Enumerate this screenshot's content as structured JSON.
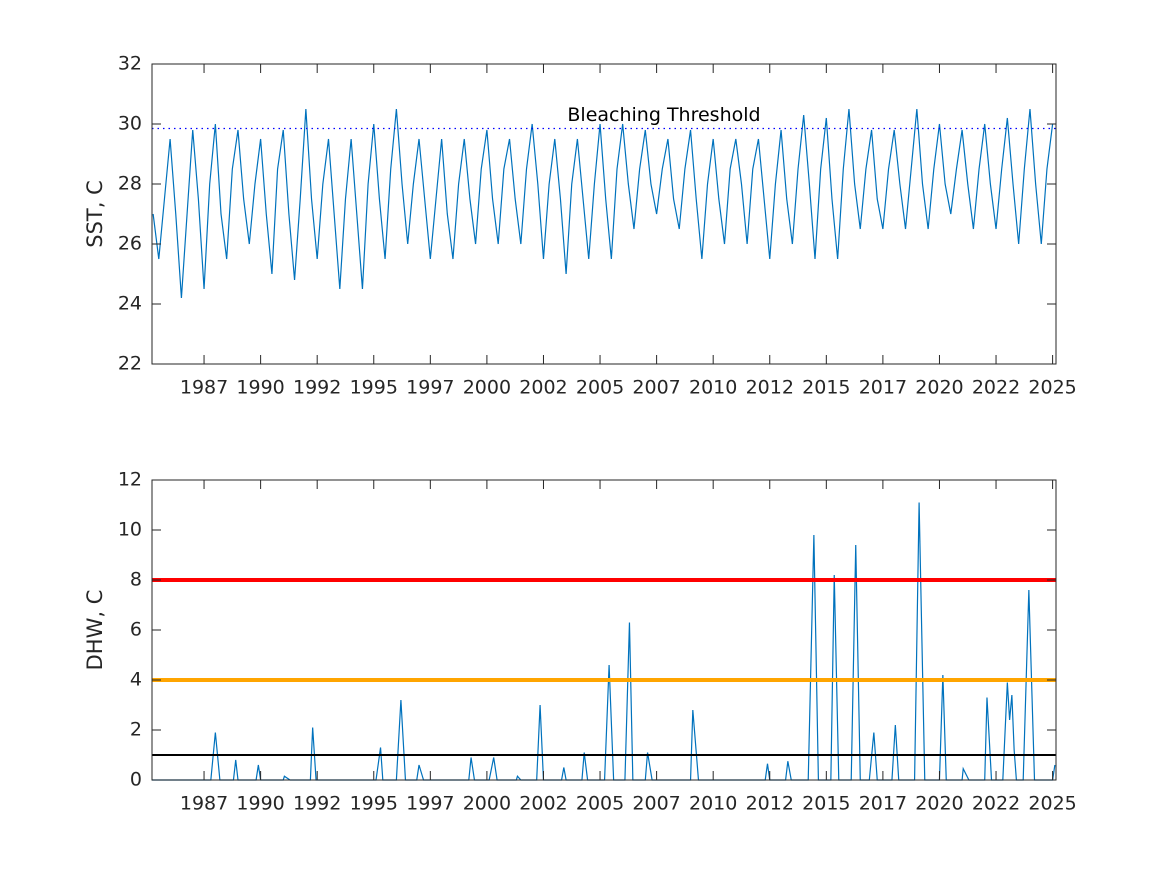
{
  "chart_data": [
    {
      "type": "line",
      "ylabel": "SST, C",
      "xlim": [
        1985.2,
        2025.15
      ],
      "xticks": [
        {
          "value": 1987.5,
          "label": "1987"
        },
        {
          "value": 1990,
          "label": "1990"
        },
        {
          "value": 1992.5,
          "label": "1992"
        },
        {
          "value": 1995,
          "label": "1995"
        },
        {
          "value": 1997.5,
          "label": "1997"
        },
        {
          "value": 2000,
          "label": "2000"
        },
        {
          "value": 2002.5,
          "label": "2002"
        },
        {
          "value": 2005,
          "label": "2005"
        },
        {
          "value": 2007.5,
          "label": "2007"
        },
        {
          "value": 2010,
          "label": "2010"
        },
        {
          "value": 2012.5,
          "label": "2012"
        },
        {
          "value": 2015,
          "label": "2015"
        },
        {
          "value": 2017.5,
          "label": "2017"
        },
        {
          "value": 2020,
          "label": "2020"
        },
        {
          "value": 2022.5,
          "label": "2022"
        },
        {
          "value": 2025,
          "label": "2025"
        }
      ],
      "ylim": [
        22,
        32
      ],
      "yticks": [
        22,
        24,
        26,
        28,
        30,
        32
      ],
      "color": "#0072bd",
      "threshold": {
        "value": 29.85,
        "label": "Bleaching Threshold",
        "color": "#0000ff"
      },
      "x": [
        1985.25,
        1985.5,
        1985.75,
        1986,
        1986.25,
        1986.5,
        1986.75,
        1987,
        1987.25,
        1987.5,
        1987.75,
        1988,
        1988.25,
        1988.5,
        1988.75,
        1989,
        1989.25,
        1989.5,
        1989.75,
        1990,
        1990.25,
        1990.5,
        1990.75,
        1991,
        1991.25,
        1991.5,
        1991.75,
        1992,
        1992.25,
        1992.5,
        1992.75,
        1993,
        1993.25,
        1993.5,
        1993.75,
        1994,
        1994.25,
        1994.5,
        1994.75,
        1995,
        1995.25,
        1995.5,
        1995.75,
        1996,
        1996.25,
        1996.5,
        1996.75,
        1997,
        1997.25,
        1997.5,
        1997.75,
        1998,
        1998.25,
        1998.5,
        1998.75,
        1999,
        1999.25,
        1999.5,
        1999.75,
        2000,
        2000.25,
        2000.5,
        2000.75,
        2001,
        2001.25,
        2001.5,
        2001.75,
        2002,
        2002.25,
        2002.5,
        2002.75,
        2003,
        2003.25,
        2003.5,
        2003.75,
        2004,
        2004.25,
        2004.5,
        2004.75,
        2005,
        2005.25,
        2005.5,
        2005.75,
        2006,
        2006.25,
        2006.5,
        2006.75,
        2007,
        2007.25,
        2007.5,
        2007.75,
        2008,
        2008.25,
        2008.5,
        2008.75,
        2009,
        2009.25,
        2009.5,
        2009.75,
        2010,
        2010.25,
        2010.5,
        2010.75,
        2011,
        2011.25,
        2011.5,
        2011.75,
        2012,
        2012.25,
        2012.5,
        2012.75,
        2013,
        2013.25,
        2013.5,
        2013.75,
        2014,
        2014.25,
        2014.5,
        2014.75,
        2015,
        2015.25,
        2015.5,
        2015.75,
        2016,
        2016.25,
        2016.5,
        2016.75,
        2017,
        2017.25,
        2017.5,
        2017.75,
        2018,
        2018.25,
        2018.5,
        2018.75,
        2019,
        2019.25,
        2019.5,
        2019.75,
        2020,
        2020.25,
        2020.5,
        2020.75,
        2021,
        2021.25,
        2021.5,
        2021.75,
        2022,
        2022.25,
        2022.5,
        2022.75,
        2023,
        2023.25,
        2023.5,
        2023.75,
        2024,
        2024.25,
        2024.5,
        2024.75,
        2025
      ],
      "values": [
        27.0,
        25.5,
        27.5,
        29.5,
        27.0,
        24.2,
        27.0,
        29.8,
        27.5,
        24.5,
        28.0,
        30.0,
        27.0,
        25.5,
        28.5,
        29.8,
        27.5,
        26.0,
        28.0,
        29.5,
        27.0,
        25.0,
        28.5,
        29.8,
        27.0,
        24.8,
        27.5,
        30.5,
        27.5,
        25.5,
        28.0,
        29.5,
        27.0,
        24.5,
        27.5,
        29.5,
        27.0,
        24.5,
        28.0,
        30.0,
        27.5,
        25.5,
        28.5,
        30.5,
        28.0,
        26.0,
        28.0,
        29.5,
        27.5,
        25.5,
        27.5,
        29.5,
        27.0,
        25.5,
        28.0,
        29.5,
        27.5,
        26.0,
        28.5,
        29.8,
        27.5,
        26.0,
        28.5,
        29.5,
        27.5,
        26.0,
        28.5,
        30.0,
        28.0,
        25.5,
        28.0,
        29.5,
        27.5,
        25.0,
        28.0,
        29.5,
        27.5,
        25.5,
        28.0,
        30.0,
        27.5,
        25.5,
        28.5,
        30.0,
        28.0,
        26.5,
        28.5,
        29.8,
        28.0,
        27.0,
        28.5,
        29.5,
        27.5,
        26.5,
        28.5,
        29.8,
        27.5,
        25.5,
        28.0,
        29.5,
        27.5,
        26.0,
        28.5,
        29.5,
        28.0,
        26.0,
        28.5,
        29.5,
        27.5,
        25.5,
        28.0,
        29.8,
        27.5,
        26.0,
        28.5,
        30.3,
        28.0,
        25.5,
        28.5,
        30.2,
        27.5,
        25.5,
        28.5,
        30.5,
        28.0,
        26.5,
        28.5,
        29.8,
        27.5,
        26.5,
        28.5,
        29.8,
        28.0,
        26.5,
        28.5,
        30.5,
        28.0,
        26.5,
        28.5,
        30.0,
        28.0,
        27.0,
        28.5,
        29.8,
        28.0,
        26.5,
        28.5,
        30.0,
        28.0,
        26.5,
        28.5,
        30.2,
        28.0,
        26.0,
        28.5,
        30.5,
        28.0,
        26.0,
        28.5,
        30.0
      ]
    },
    {
      "type": "line",
      "ylabel": "DHW, C",
      "xlim": [
        1985.2,
        2025.15
      ],
      "xticks": [
        {
          "value": 1987.5,
          "label": "1987"
        },
        {
          "value": 1990,
          "label": "1990"
        },
        {
          "value": 1992.5,
          "label": "1992"
        },
        {
          "value": 1995,
          "label": "1995"
        },
        {
          "value": 1997.5,
          "label": "1997"
        },
        {
          "value": 2000,
          "label": "2000"
        },
        {
          "value": 2002.5,
          "label": "2002"
        },
        {
          "value": 2005,
          "label": "2005"
        },
        {
          "value": 2007.5,
          "label": "2007"
        },
        {
          "value": 2010,
          "label": "2010"
        },
        {
          "value": 2012.5,
          "label": "2012"
        },
        {
          "value": 2015,
          "label": "2015"
        },
        {
          "value": 2017.5,
          "label": "2017"
        },
        {
          "value": 2020,
          "label": "2020"
        },
        {
          "value": 2022.5,
          "label": "2022"
        },
        {
          "value": 2025,
          "label": "2025"
        }
      ],
      "ylim": [
        0,
        12
      ],
      "yticks": [
        0,
        2,
        4,
        6,
        8,
        10,
        12
      ],
      "color": "#0072bd",
      "reference_lines": [
        {
          "value": 1,
          "color": "#000000"
        },
        {
          "value": 4,
          "color": "#ffa500"
        },
        {
          "value": 8,
          "color": "#ff0000"
        }
      ],
      "x": [
        1985.2,
        1987.8,
        1988.0,
        1988.2,
        1988.8,
        1988.9,
        1989.0,
        1989.8,
        1989.9,
        1990.0,
        1991.0,
        1991.05,
        1991.3,
        1992.2,
        1992.3,
        1992.45,
        1995.1,
        1995.3,
        1995.4,
        1996.0,
        1996.2,
        1996.4,
        1996.9,
        1997.0,
        1997.2,
        1999.2,
        1999.3,
        1999.45,
        2000.1,
        2000.3,
        2000.45,
        2001.3,
        2001.35,
        2001.5,
        2002.2,
        2002.35,
        2002.5,
        2003.3,
        2003.4,
        2003.5,
        2004.2,
        2004.3,
        2004.45,
        2005.2,
        2005.4,
        2005.6,
        2006.1,
        2006.3,
        2006.45,
        2007.0,
        2007.1,
        2007.3,
        2009.0,
        2009.1,
        2009.35,
        2012.3,
        2012.4,
        2012.5,
        2013.2,
        2013.3,
        2013.45,
        2014.2,
        2014.45,
        2014.65,
        2015.2,
        2015.35,
        2015.55,
        2016.1,
        2016.3,
        2016.5,
        2016.9,
        2017.1,
        2017.25,
        2017.9,
        2018.05,
        2018.2,
        2018.9,
        2019.1,
        2019.35,
        2020.0,
        2020.15,
        2020.3,
        2021.0,
        2021.05,
        2021.3,
        2022.0,
        2022.1,
        2022.3,
        2022.8,
        2023.0,
        2023.1,
        2023.2,
        2023.3,
        2023.4,
        2023.7,
        2023.95,
        2024.2,
        2025.0,
        2025.1
      ],
      "values": [
        0,
        0,
        1.9,
        0,
        0,
        0.8,
        0,
        0,
        0.6,
        0,
        0,
        0.15,
        0,
        0,
        2.1,
        0,
        0,
        1.3,
        0,
        0,
        3.2,
        0,
        0,
        0.6,
        0,
        0,
        0.9,
        0,
        0,
        0.9,
        0,
        0,
        0.15,
        0,
        0,
        3.0,
        0,
        0,
        0.5,
        0,
        0,
        1.1,
        0,
        0,
        4.6,
        0,
        0,
        6.3,
        0,
        0,
        1.1,
        0,
        0,
        2.8,
        0,
        0,
        0.65,
        0,
        0,
        0.75,
        0,
        0,
        9.8,
        0,
        0,
        8.2,
        0,
        0,
        9.4,
        0,
        0,
        1.9,
        0,
        0,
        2.2,
        0,
        0,
        11.1,
        0,
        0,
        4.2,
        0,
        0,
        0.45,
        0,
        0,
        3.3,
        0,
        0,
        3.9,
        2.4,
        3.4,
        1.2,
        0,
        0,
        7.6,
        0,
        0,
        0.6
      ]
    }
  ]
}
